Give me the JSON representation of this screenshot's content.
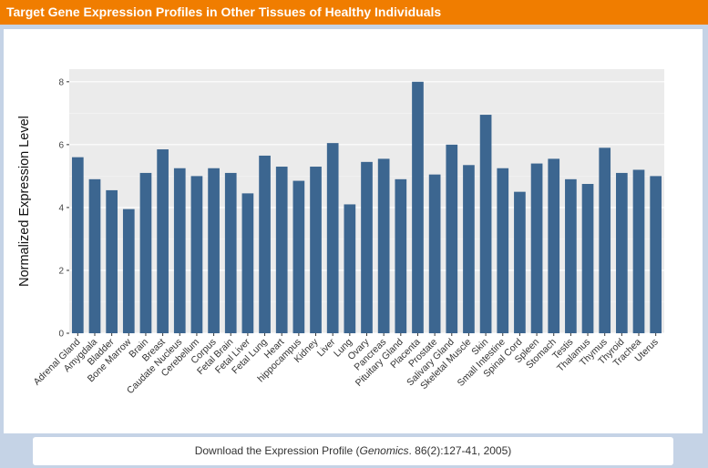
{
  "header": {
    "title": "Target Gene Expression Profiles in Other Tissues of Healthy Individuals"
  },
  "download": {
    "prefix": "Download the Expression Profile (",
    "journal": "Genomics",
    "citation": ". 86(2):127-41, 2005)"
  },
  "colors": {
    "bar": "#3c6690",
    "panel_bg": "#ebebeb",
    "header": "#f07d00"
  },
  "chart_data": {
    "type": "bar",
    "ylabel": "Normalized Expression Level",
    "xlabel": "",
    "ylim": [
      0,
      8.4
    ],
    "yticks": [
      0,
      2,
      4,
      6,
      8
    ],
    "grid": true,
    "categories": [
      "Adrenal Gland",
      "Amygdala",
      "Bladder",
      "Bone Marrow",
      "Brain",
      "Breast",
      "Caudate Nucleus",
      "Cerebellum",
      "Corpus",
      "Fetal Brain",
      "Fetal Liver",
      "Fetal Lung",
      "Heart",
      "hippocampus",
      "Kidney",
      "Liver",
      "Lung",
      "Ovary",
      "Pancreas",
      "Pituitary Gland",
      "Placenta",
      "Prostate",
      "Salivary Gland",
      "Skeletal Muscle",
      "Skin",
      "Small Intestine",
      "Spinal Cord",
      "Spleen",
      "Stomach",
      "Testis",
      "Thalamus",
      "Thymus",
      "Thyroid",
      "Trachea",
      "Uterus"
    ],
    "values": [
      5.6,
      4.9,
      4.55,
      3.95,
      5.1,
      5.85,
      5.25,
      5.0,
      5.25,
      5.1,
      4.45,
      5.65,
      5.3,
      4.85,
      5.3,
      6.05,
      4.1,
      5.45,
      5.55,
      4.9,
      8.0,
      5.05,
      6.0,
      5.35,
      6.95,
      5.25,
      4.5,
      5.4,
      5.55,
      4.9,
      4.75,
      5.9,
      5.1,
      5.2,
      5.0
    ]
  }
}
